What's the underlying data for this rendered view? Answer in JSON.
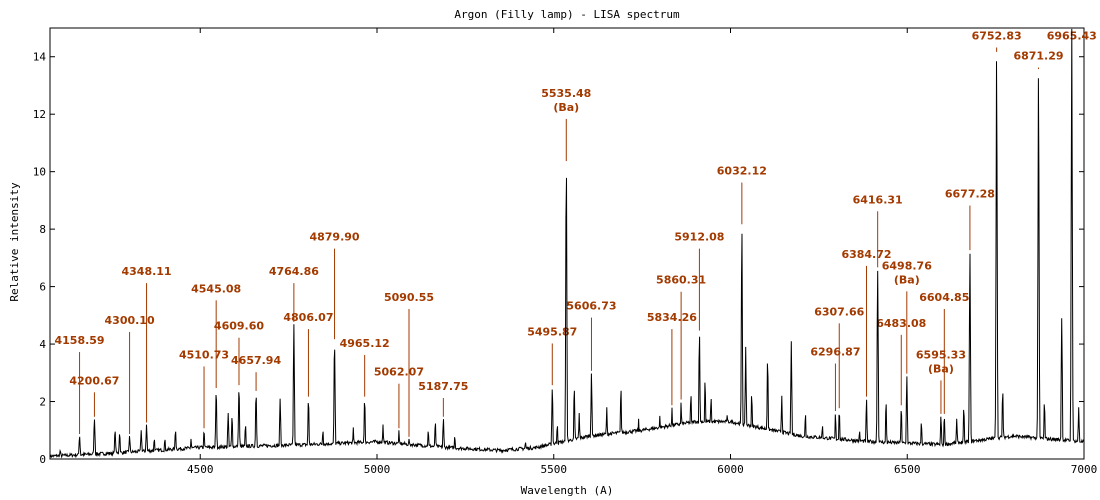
{
  "chart_data": {
    "type": "line",
    "title": "Argon (Filly lamp) - LISA spectrum",
    "xlabel": "Wavelength (A)",
    "ylabel": "Relative intensity",
    "xlim": [
      4075,
      7000
    ],
    "ylim": [
      0,
      15
    ],
    "xticks": [
      4500,
      5000,
      5500,
      6000,
      6500,
      7000
    ],
    "yticks": [
      0,
      2,
      4,
      6,
      8,
      10,
      12,
      14
    ],
    "baseline": [
      {
        "x": 4075,
        "y": 0.1
      },
      {
        "x": 4250,
        "y": 0.2
      },
      {
        "x": 4500,
        "y": 0.4
      },
      {
        "x": 4800,
        "y": 0.5
      },
      {
        "x": 5000,
        "y": 0.6
      },
      {
        "x": 5200,
        "y": 0.4
      },
      {
        "x": 5350,
        "y": 0.3
      },
      {
        "x": 5450,
        "y": 0.4
      },
      {
        "x": 5600,
        "y": 0.8
      },
      {
        "x": 5750,
        "y": 1.0
      },
      {
        "x": 5900,
        "y": 1.3
      },
      {
        "x": 6000,
        "y": 1.3
      },
      {
        "x": 6200,
        "y": 0.8
      },
      {
        "x": 6400,
        "y": 0.6
      },
      {
        "x": 6600,
        "y": 0.5
      },
      {
        "x": 6800,
        "y": 0.8
      },
      {
        "x": 7000,
        "y": 0.6
      }
    ],
    "peaks": [
      {
        "x": 4104,
        "y": 0.3
      },
      {
        "x": 4158.6,
        "y": 0.8
      },
      {
        "x": 4200.7,
        "y": 1.4
      },
      {
        "x": 4259,
        "y": 1.0
      },
      {
        "x": 4272,
        "y": 0.9
      },
      {
        "x": 4300.1,
        "y": 0.8
      },
      {
        "x": 4333,
        "y": 1.0
      },
      {
        "x": 4348.1,
        "y": 1.2
      },
      {
        "x": 4370,
        "y": 0.7
      },
      {
        "x": 4400,
        "y": 0.7
      },
      {
        "x": 4430,
        "y": 1.0
      },
      {
        "x": 4474,
        "y": 0.7
      },
      {
        "x": 4510.7,
        "y": 1.0
      },
      {
        "x": 4545.1,
        "y": 2.4
      },
      {
        "x": 4579,
        "y": 1.6
      },
      {
        "x": 4590,
        "y": 1.5
      },
      {
        "x": 4609.6,
        "y": 2.5
      },
      {
        "x": 4628,
        "y": 1.2
      },
      {
        "x": 4657.9,
        "y": 2.3
      },
      {
        "x": 4726,
        "y": 2.1
      },
      {
        "x": 4764.9,
        "y": 4.7
      },
      {
        "x": 4806.1,
        "y": 2.1
      },
      {
        "x": 4847,
        "y": 1.0
      },
      {
        "x": 4879.9,
        "y": 4.1
      },
      {
        "x": 4933,
        "y": 1.1
      },
      {
        "x": 4965.1,
        "y": 2.1
      },
      {
        "x": 5017,
        "y": 1.2
      },
      {
        "x": 5062.1,
        "y": 1.0
      },
      {
        "x": 5090.6,
        "y": 0.7
      },
      {
        "x": 5145,
        "y": 1.0
      },
      {
        "x": 5165,
        "y": 1.3
      },
      {
        "x": 5187.8,
        "y": 1.4
      },
      {
        "x": 5220,
        "y": 0.8
      },
      {
        "x": 5420,
        "y": 0.6
      },
      {
        "x": 5495.9,
        "y": 2.5
      },
      {
        "x": 5510,
        "y": 1.2
      },
      {
        "x": 5535.5,
        "y": 10.3
      },
      {
        "x": 5558,
        "y": 2.5
      },
      {
        "x": 5572,
        "y": 1.6
      },
      {
        "x": 5606.7,
        "y": 3.0
      },
      {
        "x": 5650,
        "y": 1.8
      },
      {
        "x": 5690,
        "y": 2.5
      },
      {
        "x": 5740,
        "y": 1.4
      },
      {
        "x": 5800,
        "y": 1.5
      },
      {
        "x": 5834.3,
        "y": 1.8
      },
      {
        "x": 5860.3,
        "y": 2.0
      },
      {
        "x": 5888,
        "y": 2.3
      },
      {
        "x": 5912.1,
        "y": 4.4
      },
      {
        "x": 5928,
        "y": 2.8
      },
      {
        "x": 5945,
        "y": 2.2
      },
      {
        "x": 5990,
        "y": 1.6
      },
      {
        "x": 6032.1,
        "y": 8.1
      },
      {
        "x": 6043,
        "y": 3.9
      },
      {
        "x": 6060,
        "y": 2.3
      },
      {
        "x": 6105,
        "y": 3.5
      },
      {
        "x": 6145,
        "y": 2.2
      },
      {
        "x": 6172,
        "y": 4.1
      },
      {
        "x": 6212,
        "y": 1.6
      },
      {
        "x": 6260,
        "y": 1.2
      },
      {
        "x": 6296.9,
        "y": 1.6
      },
      {
        "x": 6307.7,
        "y": 1.7
      },
      {
        "x": 6365,
        "y": 1.0
      },
      {
        "x": 6384.7,
        "y": 2.1
      },
      {
        "x": 6416.3,
        "y": 6.6
      },
      {
        "x": 6440,
        "y": 2.0
      },
      {
        "x": 6483.1,
        "y": 1.8
      },
      {
        "x": 6498.8,
        "y": 2.9
      },
      {
        "x": 6540,
        "y": 1.3
      },
      {
        "x": 6595.3,
        "y": 1.5
      },
      {
        "x": 6604.9,
        "y": 1.5
      },
      {
        "x": 6640,
        "y": 1.4
      },
      {
        "x": 6660,
        "y": 1.8
      },
      {
        "x": 6677.3,
        "y": 7.2
      },
      {
        "x": 6752.8,
        "y": 14.1
      },
      {
        "x": 6770,
        "y": 2.4
      },
      {
        "x": 6871.3,
        "y": 13.5
      },
      {
        "x": 6888,
        "y": 2.0
      },
      {
        "x": 6937,
        "y": 4.9
      },
      {
        "x": 6965.4,
        "y": 15
      },
      {
        "x": 6985,
        "y": 1.8
      }
    ],
    "annotations": [
      {
        "label": "4158.59",
        "x": 4158.59,
        "y": 0.8,
        "ly": 4.0
      },
      {
        "label": "4200.67",
        "x": 4200.67,
        "y": 1.4,
        "ly": 2.6
      },
      {
        "label": "4300.10",
        "x": 4300.1,
        "y": 0.8,
        "ly": 4.7
      },
      {
        "label": "4348.11",
        "x": 4348.11,
        "y": 1.2,
        "ly": 6.4
      },
      {
        "label": "4510.73",
        "x": 4510.73,
        "y": 1.0,
        "ly": 3.5
      },
      {
        "label": "4545.08",
        "x": 4545.08,
        "y": 2.4,
        "ly": 5.8
      },
      {
        "label": "4609.60",
        "x": 4609.6,
        "y": 2.5,
        "ly": 4.5
      },
      {
        "label": "4657.94",
        "x": 4657.94,
        "y": 2.3,
        "ly": 3.3
      },
      {
        "label": "4764.86",
        "x": 4764.86,
        "y": 4.7,
        "ly": 6.4
      },
      {
        "label": "4806.07",
        "x": 4806.07,
        "y": 2.1,
        "ly": 4.8
      },
      {
        "label": "4879.90",
        "x": 4879.9,
        "y": 4.1,
        "ly": 7.6
      },
      {
        "label": "4965.12",
        "x": 4965.12,
        "y": 2.1,
        "ly": 3.9
      },
      {
        "label": "5062.07",
        "x": 5062.07,
        "y": 1.0,
        "ly": 2.9
      },
      {
        "label": "5090.55",
        "x": 5090.55,
        "y": 0.7,
        "ly": 5.5
      },
      {
        "label": "5187.75",
        "x": 5187.75,
        "y": 1.4,
        "ly": 2.4
      },
      {
        "label": "5495.87",
        "x": 5495.87,
        "y": 2.5,
        "ly": 4.3
      },
      {
        "label": "5535.48",
        "sub": "(Ba)",
        "x": 5535.48,
        "y": 10.3,
        "ly": 12.6
      },
      {
        "label": "5606.73",
        "x": 5606.73,
        "y": 3.0,
        "ly": 5.2
      },
      {
        "label": "5834.26",
        "x": 5834.26,
        "y": 1.8,
        "ly": 4.8
      },
      {
        "label": "5860.31",
        "x": 5860.31,
        "y": 2.0,
        "ly": 6.1
      },
      {
        "label": "5912.08",
        "x": 5912.08,
        "y": 4.4,
        "ly": 7.6
      },
      {
        "label": "6032.12",
        "x": 6032.12,
        "y": 8.1,
        "ly": 9.9
      },
      {
        "label": "6296.87",
        "x": 6296.87,
        "y": 1.6,
        "ly": 3.6
      },
      {
        "label": "6307.66",
        "x": 6307.66,
        "y": 1.7,
        "ly": 5.0
      },
      {
        "label": "6384.72",
        "x": 6384.72,
        "y": 2.1,
        "ly": 7.0
      },
      {
        "label": "6416.31",
        "x": 6416.31,
        "y": 6.6,
        "ly": 8.9
      },
      {
        "label": "6483.08",
        "x": 6483.08,
        "y": 1.8,
        "ly": 4.6
      },
      {
        "label": "6498.76",
        "sub": "(Ba)",
        "x": 6498.76,
        "y": 2.9,
        "ly": 6.6
      },
      {
        "label": "6595.33",
        "sub": "(Ba)",
        "x": 6595.33,
        "y": 1.5,
        "ly": 3.5
      },
      {
        "label": "6604.85",
        "x": 6604.85,
        "y": 1.5,
        "ly": 5.5
      },
      {
        "label": "6677.28",
        "x": 6677.28,
        "y": 7.2,
        "ly": 9.1
      },
      {
        "label": "6752.83",
        "x": 6752.83,
        "y": 14.1,
        "ly": 14.6
      },
      {
        "label": "6871.29",
        "x": 6871.29,
        "y": 13.5,
        "ly": 13.9
      },
      {
        "label": "6965.43",
        "x": 6965.43,
        "y": 15,
        "ly": 14.6
      }
    ],
    "grid": false,
    "colors": {
      "line": "#000000",
      "annotation": "#a33a00"
    }
  }
}
